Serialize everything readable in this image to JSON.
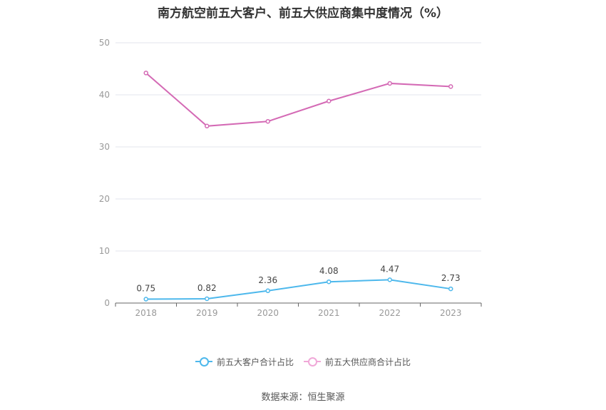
{
  "chart_data": {
    "type": "line",
    "title": "南方航空前五大客户、前五大供应商集中度情况（%）",
    "categories": [
      "2018",
      "2019",
      "2020",
      "2021",
      "2022",
      "2023"
    ],
    "ylim": [
      0,
      50
    ],
    "yticks": [
      0,
      10,
      20,
      30,
      40,
      50
    ],
    "grid": true,
    "legend_position": "bottom",
    "series": [
      {
        "name": "前五大客户合计占比",
        "color": "#4db8ec",
        "values": [
          0.75,
          0.82,
          2.36,
          4.08,
          4.47,
          2.73
        ],
        "show_labels": true
      },
      {
        "name": "前五大供应商合计占比",
        "color": "#d46ab5",
        "legend_color": "#f0a8d8",
        "values": [
          44.2,
          34.0,
          34.9,
          38.8,
          42.2,
          41.6
        ],
        "show_labels": false
      }
    ]
  },
  "footer": {
    "source": "数据来源：恒生聚源"
  }
}
